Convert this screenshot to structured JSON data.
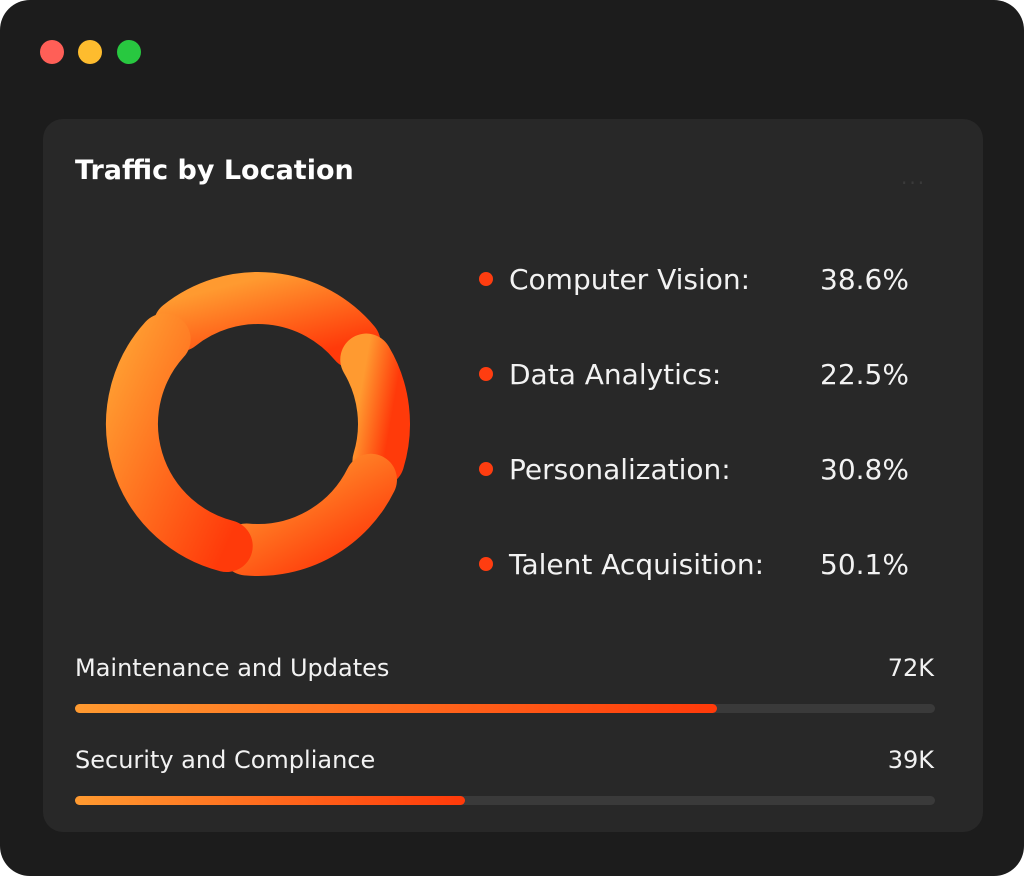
{
  "window": {
    "controls": [
      {
        "name": "close",
        "color": "#ff5f57"
      },
      {
        "name": "minimize",
        "color": "#febc2e"
      },
      {
        "name": "maximize",
        "color": "#28c840"
      }
    ]
  },
  "card": {
    "title": "Traffic by Location",
    "more_icon": "ellipsis-icon",
    "more_label": "...",
    "legend": [
      {
        "label": "Computer Vision:",
        "value": "38.6%"
      },
      {
        "label": "Data Analytics:",
        "value": "22.5%"
      },
      {
        "label": "Personalization:",
        "value": "30.8%"
      },
      {
        "label": "Talent Acquisition:",
        "value": "50.1%"
      }
    ],
    "bars": [
      {
        "label": "Maintenance and Updates",
        "value": "72K",
        "fill_percent": 74.7
      },
      {
        "label": "Security and Compliance",
        "value": "39K",
        "fill_percent": 45.3
      }
    ]
  },
  "colors": {
    "accent_start": "#ff9a30",
    "accent_end": "#ff3a0a",
    "card_bg": "#282828",
    "window_bg": "#1c1c1c"
  }
}
